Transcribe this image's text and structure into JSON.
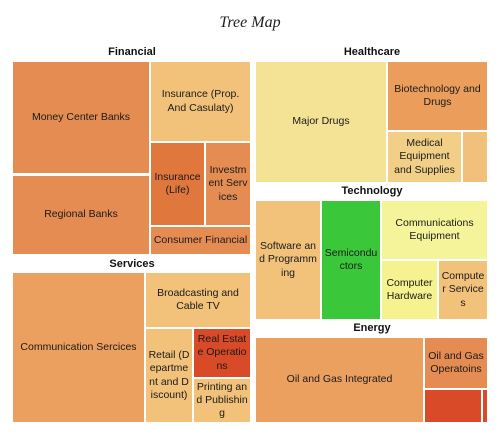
{
  "chart_data": {
    "type": "treemap",
    "title": "Tree Map",
    "groups": [
      {
        "name": "Financial",
        "items": [
          {
            "label": "Money Center Banks",
            "color": "#e58c52"
          },
          {
            "label": "Regional Banks",
            "color": "#e58c52"
          },
          {
            "label": "Insurance (Prop. And Casulaty)",
            "color": "#f2c27b"
          },
          {
            "label": "Insurance (Life)",
            "color": "#e0783e"
          },
          {
            "label": "Investment Services",
            "color": "#e58c52"
          },
          {
            "label": "Consumer Financial",
            "color": "#e58c52"
          }
        ]
      },
      {
        "name": "Healthcare",
        "items": [
          {
            "label": "Major Drugs",
            "color": "#f4e394"
          },
          {
            "label": "Biotechnology and Drugs",
            "color": "#eb9e5c"
          },
          {
            "label": "Medical Equipment and Supplies",
            "color": "#f2cf86"
          },
          {
            "label": "",
            "color": "#f1c07a"
          }
        ]
      },
      {
        "name": "Technology",
        "items": [
          {
            "label": "Software and Programming",
            "color": "#f2c27b"
          },
          {
            "label": "Semiconductors",
            "color": "#3ac73a"
          },
          {
            "label": "Communications Equipment",
            "color": "#f5f49a"
          },
          {
            "label": "Computer Hardware",
            "color": "#f5f28f"
          },
          {
            "label": "Computer Services",
            "color": "#f2c27b"
          }
        ]
      },
      {
        "name": "Services",
        "items": [
          {
            "label": "Communication Sercices",
            "color": "#eba060"
          },
          {
            "label": "Broadcasting and Cable TV",
            "color": "#f2c27b"
          },
          {
            "label": "Retail (Department and Discount)",
            "color": "#f2c27b"
          },
          {
            "label": "Real Estate Operations",
            "color": "#d84a28"
          },
          {
            "label": "Printing and Publishing",
            "color": "#f2c27b"
          }
        ]
      },
      {
        "name": "Energy",
        "items": [
          {
            "label": "Oil and Gas Integrated",
            "color": "#eba060"
          },
          {
            "label": "Oil and Gas Operatoins",
            "color": "#e58c52"
          },
          {
            "label": "",
            "color": "#d84a28"
          },
          {
            "label": "",
            "color": "#d84a28"
          }
        ]
      }
    ]
  }
}
